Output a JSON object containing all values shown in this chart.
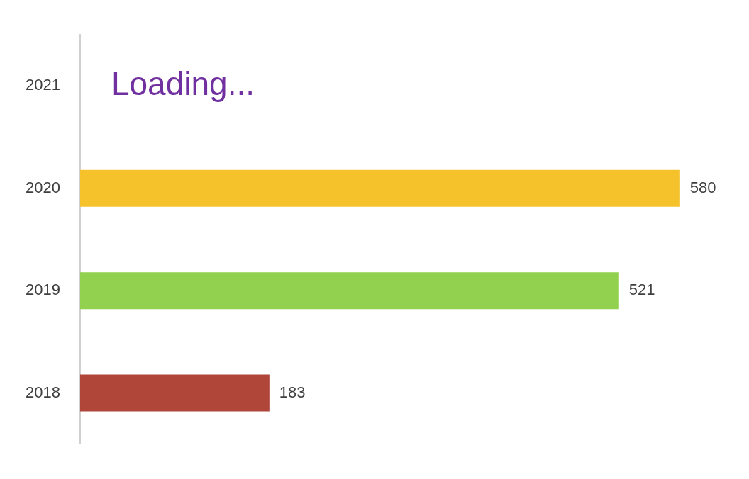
{
  "chart_data": {
    "type": "bar",
    "orientation": "horizontal",
    "categories": [
      "2021",
      "2020",
      "2019",
      "2018"
    ],
    "values": [
      null,
      580,
      521,
      183
    ],
    "colors": [
      null,
      "#f5c22c",
      "#92d050",
      "#b0463a"
    ],
    "tick_labels": "y",
    "grid": false,
    "legend": false,
    "data_labels": true,
    "annotations": [
      "Loading..."
    ]
  }
}
